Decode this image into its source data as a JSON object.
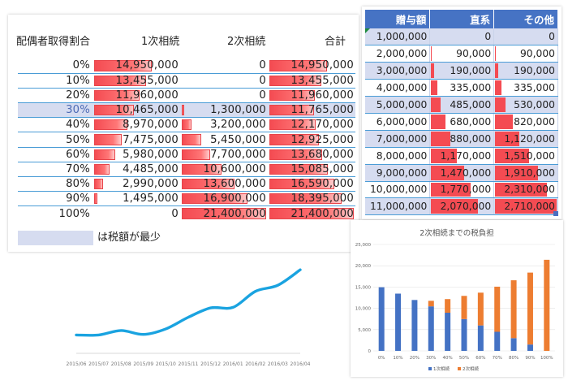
{
  "spouse_table": {
    "headers": {
      "ratio": "配偶者取得割合",
      "first": "1次相続",
      "second": "2次相続",
      "total": "合計"
    },
    "rows": [
      {
        "pct": "0%",
        "first": "14,950,000",
        "second": "0",
        "total": "14,950,000"
      },
      {
        "pct": "10%",
        "first": "13,455,000",
        "second": "0",
        "total": "13,455,000"
      },
      {
        "pct": "20%",
        "first": "11,960,000",
        "second": "0",
        "total": "11,960,000"
      },
      {
        "pct": "30%",
        "first": "10,465,000",
        "second": "1,300,000",
        "total": "11,765,000"
      },
      {
        "pct": "40%",
        "first": "8,970,000",
        "second": "3,200,000",
        "total": "12,170,000"
      },
      {
        "pct": "50%",
        "first": "7,475,000",
        "second": "5,450,000",
        "total": "12,925,000"
      },
      {
        "pct": "60%",
        "first": "5,980,000",
        "second": "7,700,000",
        "total": "13,680,000"
      },
      {
        "pct": "70%",
        "first": "4,485,000",
        "second": "10,600,000",
        "total": "15,085,000"
      },
      {
        "pct": "80%",
        "first": "2,990,000",
        "second": "13,600,000",
        "total": "16,590,000"
      },
      {
        "pct": "90%",
        "first": "1,495,000",
        "second": "16,900,000",
        "total": "18,395,000"
      },
      {
        "pct": "100%",
        "first": "0",
        "second": "21,400,000",
        "total": "21,400,000"
      }
    ],
    "bar_fraction": [
      [
        0.699,
        0,
        0.699
      ],
      [
        0.629,
        0,
        0.629
      ],
      [
        0.559,
        0,
        0.559
      ],
      [
        0.489,
        0.061,
        0.55
      ],
      [
        0.419,
        0.15,
        0.569
      ],
      [
        0.349,
        0.255,
        0.604
      ],
      [
        0.279,
        0.36,
        0.639
      ],
      [
        0.21,
        0.495,
        0.705
      ],
      [
        0.14,
        0.636,
        0.775
      ],
      [
        0.07,
        0.79,
        0.86
      ],
      [
        0,
        1,
        1
      ]
    ],
    "highlight_row": 3,
    "legend_text": "は税額が最少"
  },
  "gift_table": {
    "headers": {
      "gift": "贈与額",
      "direct": "直系",
      "other": "その他"
    },
    "rows": [
      {
        "gift": "1,000,000",
        "direct": "0",
        "other": "0"
      },
      {
        "gift": "2,000,000",
        "direct": "90,000",
        "other": "90,000"
      },
      {
        "gift": "3,000,000",
        "direct": "190,000",
        "other": "190,000"
      },
      {
        "gift": "4,000,000",
        "direct": "335,000",
        "other": "335,000"
      },
      {
        "gift": "5,000,000",
        "direct": "485,000",
        "other": "530,000"
      },
      {
        "gift": "6,000,000",
        "direct": "680,000",
        "other": "820,000"
      },
      {
        "gift": "7,000,000",
        "direct": "880,000",
        "other": "1,120,000"
      },
      {
        "gift": "8,000,000",
        "direct": "1,170,000",
        "other": "1,510,000"
      },
      {
        "gift": "9,000,000",
        "direct": "1,470,000",
        "other": "1,910,000"
      },
      {
        "gift": "10,000,000",
        "direct": "1,770,000",
        "other": "2,310,000"
      },
      {
        "gift": "11,000,000",
        "direct": "2,070,000",
        "other": "2,710,000"
      }
    ],
    "direct_fraction": [
      0,
      0.033,
      0.07,
      0.124,
      0.179,
      0.251,
      0.325,
      0.432,
      0.542,
      0.653,
      0.764
    ],
    "other_fraction": [
      0,
      0.033,
      0.07,
      0.124,
      0.196,
      0.303,
      0.413,
      0.557,
      0.705,
      0.852,
      1
    ]
  },
  "chart_data": [
    {
      "type": "line",
      "x": [
        "2015/06",
        "2015/07",
        "2015/08",
        "2015/09",
        "2015/10",
        "2015/11",
        "2015/12",
        "2016/01",
        "2016/02",
        "2016/03",
        "2016/04"
      ],
      "values": [
        2.0,
        2.0,
        2.8,
        2.1,
        3.1,
        5.2,
        6.9,
        7.0,
        9.9,
        11.0,
        13.8
      ],
      "ylim": [
        0,
        15
      ],
      "grid": false,
      "color": "#1aa3e0"
    },
    {
      "type": "bar",
      "stacked": true,
      "title": "2次相続までの税負担",
      "categories": [
        "0%",
        "10%",
        "20%",
        "30%",
        "40%",
        "50%",
        "60%",
        "70%",
        "80%",
        "90%",
        "100%"
      ],
      "series": [
        {
          "name": "1次相続",
          "color": "#4472c4",
          "values": [
            14950,
            13455,
            11960,
            10465,
            8970,
            7475,
            5980,
            4485,
            2990,
            1495,
            0
          ]
        },
        {
          "name": "2次相続",
          "color": "#ed7d31",
          "values": [
            0,
            0,
            0,
            1300,
            3200,
            5450,
            7700,
            10600,
            13600,
            16900,
            21400
          ]
        }
      ],
      "yticks": [
        "0",
        "5,000",
        "10,000",
        "15,000",
        "20,000",
        "25,000"
      ],
      "ylim": [
        0,
        25000
      ],
      "legend": "bottom"
    }
  ]
}
